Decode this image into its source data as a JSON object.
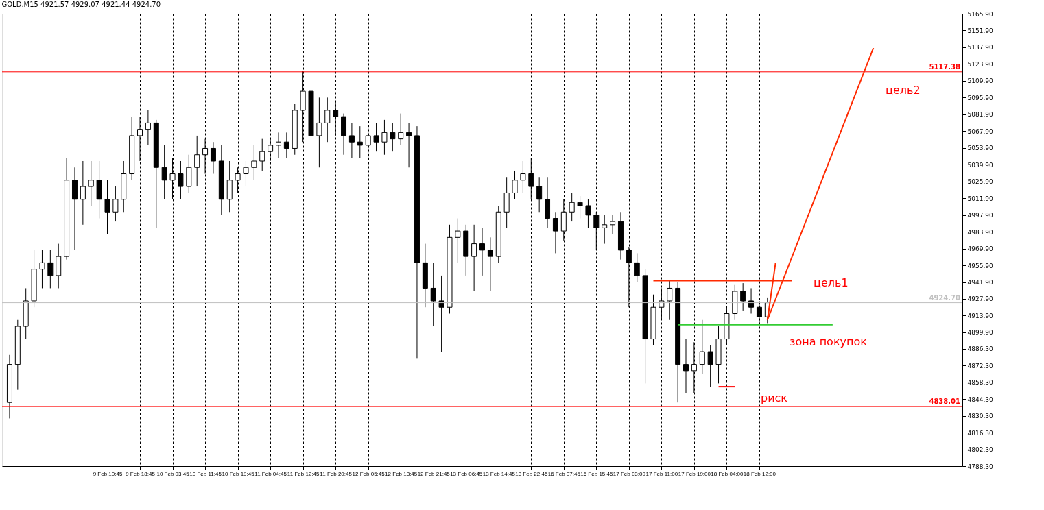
{
  "chart_data": {
    "type": "candlestick",
    "title": "GOLD.M15  4921.57 4929.07 4921.44 4924.70",
    "color": "#000000",
    "categories": [
      null,
      null,
      null,
      null,
      null,
      null,
      null,
      null,
      null,
      null,
      null,
      null,
      "9 Feb 10:45",
      null,
      null,
      null,
      "9 Feb 18:45",
      null,
      null,
      null,
      "10 Feb 03:45",
      null,
      null,
      null,
      "10 Feb 11:45",
      null,
      null,
      null,
      "10 Feb 19:45",
      null,
      null,
      null,
      "11 Feb 04:45",
      null,
      null,
      null,
      "11 Feb 12:45",
      null,
      null,
      null,
      "11 Feb 20:45",
      null,
      null,
      null,
      "12 Feb 05:45",
      null,
      null,
      null,
      "12 Feb 13:45",
      null,
      null,
      null,
      "12 Feb 21:45",
      null,
      null,
      null,
      "13 Feb 06:45",
      null,
      null,
      null,
      "13 Feb 14:45",
      null,
      null,
      null,
      "13 Feb 22:45",
      null,
      null,
      null,
      "16 Feb 07:45",
      null,
      null,
      null,
      "16 Feb 15:45",
      null,
      null,
      null,
      "17 Feb 03:00",
      null,
      null,
      null,
      "17 Feb 11:00",
      null,
      null,
      null,
      "17 Feb 19:00",
      null,
      null,
      null,
      "18 Feb 04:00",
      null,
      null,
      null,
      "18 Feb 12:00",
      null,
      null,
      null,
      null,
      null,
      null,
      null,
      null,
      null,
      null,
      null,
      null,
      null,
      null,
      null,
      null,
      null,
      null,
      null,
      null,
      null,
      null,
      null,
      null
    ],
    "ohlc": [
      [
        4841.4,
        4881.1,
        4828.1,
        4873.2
      ],
      [
        4873.2,
        4910.3,
        4852.0,
        4905.0
      ],
      [
        4905.0,
        4936.8,
        4894.4,
        4926.2
      ],
      [
        4926.2,
        4968.6,
        4920.9,
        4952.7
      ],
      [
        4952.7,
        4968.6,
        4936.8,
        4958.0
      ],
      [
        4958.0,
        4968.6,
        4936.8,
        4947.4
      ],
      [
        4947.4,
        4973.9,
        4936.8,
        4963.3
      ],
      [
        4963.3,
        5045.5,
        4960.7,
        5027.0
      ],
      [
        5027.0,
        5037.6,
        4968.6,
        5011.0
      ],
      [
        5011.0,
        5042.9,
        4989.8,
        5021.7
      ],
      [
        5021.7,
        5042.9,
        5005.7,
        5027.0
      ],
      [
        5027.0,
        5042.9,
        4995.1,
        5011.0
      ],
      [
        5011.0,
        5027.0,
        4981.9,
        5000.4
      ],
      [
        5000.4,
        5021.7,
        4992.5,
        5011.0
      ],
      [
        5011.0,
        5042.9,
        5000.4,
        5032.3
      ],
      [
        5032.3,
        5080.0,
        5027.0,
        5064.1
      ],
      [
        5064.1,
        5080.0,
        5042.9,
        5069.4
      ],
      [
        5069.4,
        5085.3,
        5056.1,
        5074.7
      ],
      [
        5074.7,
        5077.3,
        4987.2,
        5037.6
      ],
      [
        5037.6,
        5056.1,
        5011.0,
        5027.0
      ],
      [
        5027.0,
        5045.5,
        5011.0,
        5032.3
      ],
      [
        5032.3,
        5042.9,
        5011.0,
        5021.7
      ],
      [
        5021.7,
        5048.2,
        5016.3,
        5037.6
      ],
      [
        5037.6,
        5064.1,
        5021.7,
        5048.2
      ],
      [
        5048.2,
        5061.4,
        5032.3,
        5053.5
      ],
      [
        5053.5,
        5058.8,
        5032.3,
        5042.9
      ],
      [
        5042.9,
        5056.1,
        4997.8,
        5011.0
      ],
      [
        5011.0,
        5042.9,
        5000.4,
        5027.0
      ],
      [
        5027.0,
        5037.6,
        5016.3,
        5032.3
      ],
      [
        5032.3,
        5042.9,
        5021.7,
        5037.6
      ],
      [
        5037.6,
        5056.1,
        5027.0,
        5042.9
      ],
      [
        5042.9,
        5061.4,
        5034.9,
        5050.8
      ],
      [
        5050.8,
        5061.4,
        5042.9,
        5056.1
      ],
      [
        5056.1,
        5066.7,
        5045.5,
        5058.8
      ],
      [
        5058.8,
        5066.7,
        5045.5,
        5053.5
      ],
      [
        5053.5,
        5090.6,
        5048.2,
        5085.3
      ],
      [
        5085.3,
        5118.1,
        5058.8,
        5101.2
      ],
      [
        5101.2,
        5106.5,
        5019.0,
        5064.1
      ],
      [
        5064.1,
        5095.9,
        5037.6,
        5074.7
      ],
      [
        5074.7,
        5095.9,
        5058.8,
        5085.3
      ],
      [
        5085.3,
        5093.2,
        5064.1,
        5080.0
      ],
      [
        5080.0,
        5082.6,
        5048.2,
        5064.1
      ],
      [
        5064.1,
        5074.7,
        5045.5,
        5058.8
      ],
      [
        5058.8,
        5072.0,
        5045.5,
        5056.1
      ],
      [
        5056.1,
        5072.0,
        5045.5,
        5064.1
      ],
      [
        5064.1,
        5074.7,
        5050.8,
        5058.8
      ],
      [
        5058.8,
        5077.3,
        5048.2,
        5066.7
      ],
      [
        5066.7,
        5074.7,
        5050.8,
        5061.4
      ],
      [
        5061.4,
        5082.6,
        5056.1,
        5066.7
      ],
      [
        5066.7,
        5074.7,
        5037.6,
        5064.1
      ],
      [
        5064.1,
        5072.0,
        4878.5,
        4958.0
      ],
      [
        4958.0,
        4973.9,
        4920.9,
        4936.8
      ],
      [
        4936.8,
        4958.0,
        4905.0,
        4926.2
      ],
      [
        4926.2,
        4947.4,
        4883.8,
        4920.9
      ],
      [
        4920.9,
        4989.8,
        4915.6,
        4979.2
      ],
      [
        4979.2,
        4995.1,
        4958.0,
        4984.5
      ],
      [
        4984.5,
        4989.8,
        4947.4,
        4963.3
      ],
      [
        4963.3,
        4989.8,
        4934.2,
        4973.9
      ],
      [
        4973.9,
        4987.2,
        4947.4,
        4968.6
      ],
      [
        4968.6,
        4979.2,
        4934.2,
        4963.3
      ],
      [
        4963.3,
        5005.7,
        4958.0,
        5000.4
      ],
      [
        5000.4,
        5029.6,
        4987.2,
        5016.3
      ],
      [
        5016.3,
        5034.9,
        5011.0,
        5027.0
      ],
      [
        5027.0,
        5042.9,
        5016.3,
        5032.3
      ],
      [
        5032.3,
        5045.5,
        5011.0,
        5021.7
      ],
      [
        5021.7,
        5029.6,
        5000.4,
        5011.0
      ],
      [
        5011.0,
        5029.6,
        4987.2,
        4995.1
      ],
      [
        4995.1,
        5000.4,
        4966.0,
        4984.5
      ],
      [
        4984.5,
        5011.0,
        4976.6,
        5000.4
      ],
      [
        5000.4,
        5016.3,
        4992.5,
        5008.4
      ],
      [
        5008.4,
        5013.7,
        4995.1,
        5005.7
      ],
      [
        5005.7,
        5011.0,
        4987.2,
        4997.8
      ],
      [
        4997.8,
        5000.4,
        4968.6,
        4987.2
      ],
      [
        4987.2,
        4997.8,
        4973.9,
        4989.8
      ],
      [
        4989.8,
        4997.8,
        4981.9,
        4992.5
      ],
      [
        4992.5,
        5000.4,
        4960.7,
        4968.6
      ],
      [
        4968.6,
        4971.3,
        4920.9,
        4958.0
      ],
      [
        4958.0,
        4966.0,
        4942.1,
        4947.4
      ],
      [
        4947.4,
        4952.7,
        4857.3,
        4894.4
      ],
      [
        4894.4,
        4931.5,
        4889.1,
        4920.9
      ],
      [
        4920.9,
        4936.8,
        4910.3,
        4926.2
      ],
      [
        4926.2,
        4943.1,
        4910.3,
        4936.8
      ],
      [
        4936.8,
        4942.1,
        4841.4,
        4873.2
      ],
      [
        4873.2,
        4894.4,
        4849.3,
        4867.9
      ],
      [
        4867.9,
        4891.7,
        4849.3,
        4873.2
      ],
      [
        4873.2,
        4910.3,
        4865.2,
        4883.8
      ],
      [
        4883.8,
        4889.1,
        4854.6,
        4873.2
      ],
      [
        4873.2,
        4905.0,
        4857.3,
        4894.4
      ],
      [
        4894.4,
        4920.9,
        4889.1,
        4915.6
      ],
      [
        4915.6,
        4939.5,
        4910.3,
        4934.2
      ],
      [
        4934.2,
        4941.0,
        4918.2,
        4926.2
      ],
      [
        4926.2,
        4936.8,
        4915.6,
        4920.9
      ],
      [
        4920.9,
        4926.2,
        4907.6,
        4912.9
      ],
      [
        4912.9,
        4929.1,
        4907.6,
        4924.7
      ],
      null,
      null,
      null,
      null,
      null,
      null,
      null,
      null,
      null,
      null,
      null,
      null,
      null,
      null,
      null,
      null,
      null,
      null,
      null,
      null,
      null,
      null,
      null
    ],
    "series": [
      {
        "type": "line",
        "color": "#ff2a00",
        "values": [
          null,
          null,
          null,
          null,
          null,
          null,
          null,
          null,
          null,
          null,
          null,
          null,
          null,
          null,
          null,
          null,
          null,
          null,
          null,
          null,
          null,
          null,
          null,
          null,
          null,
          null,
          null,
          null,
          null,
          null,
          null,
          null,
          null,
          null,
          null,
          null,
          null,
          null,
          null,
          null,
          null,
          null,
          null,
          null,
          null,
          null,
          null,
          null,
          null,
          null,
          null,
          null,
          null,
          null,
          null,
          null,
          null,
          null,
          null,
          null,
          null,
          null,
          null,
          null,
          null,
          null,
          null,
          null,
          null,
          null,
          null,
          null,
          null,
          null,
          null,
          null,
          null,
          null,
          null,
          null,
          null,
          null,
          null,
          null,
          null,
          null,
          null,
          null,
          null,
          null,
          null,
          null,
          null,
          4910.3,
          null,
          null,
          null,
          null,
          null,
          null,
          null,
          null,
          null,
          null,
          null,
          null,
          5137.3,
          null,
          null,
          null,
          null,
          null,
          null,
          null,
          null,
          null,
          null
        ]
      },
      {
        "type": "line",
        "color": "#ff2a00",
        "values": [
          null,
          null,
          null,
          null,
          null,
          null,
          null,
          null,
          null,
          null,
          null,
          null,
          null,
          null,
          null,
          null,
          null,
          null,
          null,
          null,
          null,
          null,
          null,
          null,
          null,
          null,
          null,
          null,
          null,
          null,
          null,
          null,
          null,
          null,
          null,
          null,
          null,
          null,
          null,
          null,
          null,
          null,
          null,
          null,
          null,
          null,
          null,
          null,
          null,
          null,
          null,
          null,
          null,
          null,
          null,
          null,
          null,
          null,
          null,
          null,
          null,
          null,
          null,
          null,
          null,
          null,
          null,
          null,
          null,
          null,
          null,
          null,
          null,
          null,
          null,
          null,
          null,
          null,
          null,
          null,
          null,
          null,
          null,
          null,
          null,
          null,
          null,
          null,
          null,
          null,
          null,
          null,
          null,
          4910.3,
          4958.0,
          null,
          null,
          null,
          null,
          null,
          null,
          null,
          null,
          null,
          null,
          null,
          null,
          null,
          null,
          null,
          null,
          null,
          null,
          null,
          null,
          null,
          null
        ]
      },
      {
        "type": "line",
        "color": "#ff0000",
        "values": [
          null,
          null,
          null,
          null,
          null,
          null,
          null,
          null,
          null,
          null,
          null,
          null,
          null,
          null,
          null,
          null,
          null,
          null,
          null,
          null,
          null,
          null,
          null,
          null,
          null,
          null,
          null,
          null,
          null,
          null,
          null,
          null,
          null,
          null,
          null,
          null,
          null,
          null,
          null,
          null,
          null,
          null,
          null,
          null,
          null,
          null,
          null,
          null,
          null,
          null,
          null,
          null,
          null,
          null,
          null,
          null,
          null,
          null,
          null,
          null,
          null,
          null,
          null,
          null,
          null,
          null,
          null,
          null,
          null,
          null,
          null,
          null,
          null,
          null,
          null,
          null,
          null,
          null,
          null,
          null,
          null,
          null,
          null,
          null,
          null,
          null,
          null,
          4854.6,
          4854.6,
          4854.6,
          null,
          null,
          null,
          null,
          null,
          null,
          null,
          null,
          null,
          null,
          null,
          null,
          null,
          null,
          null,
          null,
          null,
          null,
          null,
          null,
          null,
          null,
          null,
          null,
          null,
          null,
          null
        ]
      },
      {
        "type": "line",
        "color": "#ff2a00",
        "values": [
          null,
          null,
          null,
          null,
          null,
          null,
          null,
          null,
          null,
          null,
          null,
          null,
          null,
          null,
          null,
          null,
          null,
          null,
          null,
          null,
          null,
          null,
          null,
          null,
          null,
          null,
          null,
          null,
          null,
          null,
          null,
          null,
          null,
          null,
          null,
          null,
          null,
          null,
          null,
          null,
          null,
          null,
          null,
          null,
          null,
          null,
          null,
          null,
          null,
          null,
          null,
          null,
          null,
          null,
          null,
          null,
          null,
          null,
          null,
          null,
          null,
          null,
          null,
          null,
          null,
          null,
          null,
          null,
          null,
          null,
          null,
          null,
          null,
          null,
          null,
          null,
          null,
          null,
          null,
          4943.1,
          4943.1,
          4943.1,
          4943.1,
          4943.1,
          4943.1,
          4943.1,
          4943.1,
          4943.1,
          4943.1,
          4943.1,
          4943.1,
          4943.1,
          4943.1,
          4943.1,
          4943.1,
          4943.1,
          4943.1,
          null,
          null,
          null,
          null,
          null,
          null,
          null,
          null,
          null,
          null,
          null,
          null,
          null,
          null,
          null,
          null,
          null,
          null,
          null,
          null
        ]
      },
      {
        "type": "line",
        "color": "#33cc33",
        "values": [
          null,
          null,
          null,
          null,
          null,
          null,
          null,
          null,
          null,
          null,
          null,
          null,
          null,
          null,
          null,
          null,
          null,
          null,
          null,
          null,
          null,
          null,
          null,
          null,
          null,
          null,
          null,
          null,
          null,
          null,
          null,
          null,
          null,
          null,
          null,
          null,
          null,
          null,
          null,
          null,
          null,
          null,
          null,
          null,
          null,
          null,
          null,
          null,
          null,
          null,
          null,
          null,
          null,
          null,
          null,
          null,
          null,
          null,
          null,
          null,
          null,
          null,
          null,
          null,
          null,
          null,
          null,
          null,
          null,
          null,
          null,
          null,
          null,
          null,
          null,
          null,
          null,
          null,
          null,
          null,
          null,
          null,
          4906.3,
          4906.3,
          4906.3,
          4906.3,
          4906.3,
          4906.3,
          4906.3,
          4906.3,
          4906.3,
          4906.3,
          4906.3,
          4906.3,
          4906.3,
          4906.3,
          4906.3,
          4906.3,
          4906.3,
          4906.3,
          4906.3,
          4906.3,
          null,
          null,
          null,
          null,
          null,
          null,
          null,
          null,
          null,
          null,
          null,
          null,
          null,
          null,
          null
        ]
      }
    ],
    "ref_lines": [
      {
        "axis": "y",
        "value": 5117.38,
        "label": "5117.38",
        "color": "#ff0000"
      },
      {
        "axis": "y",
        "value": 4838.01,
        "label": "4838.01",
        "color": "#ff0000"
      },
      {
        "axis": "y",
        "value": 4924.7,
        "label": "4924.70",
        "color": "#c0c0c0"
      }
    ],
    "annotations": [
      "цель2",
      "цель1",
      "зона покупок",
      "риск"
    ],
    "ylim": [
      4788.3,
      5165.9
    ],
    "yticks": [
      {
        "value": 5165.9,
        "label": "5165.90"
      },
      {
        "value": 5151.9,
        "label": "5151.90"
      },
      {
        "value": 5137.9,
        "label": "5137.90"
      },
      {
        "value": 5123.9,
        "label": "5123.90"
      },
      {
        "value": 5109.9,
        "label": "5109.90"
      },
      {
        "value": 5095.9,
        "label": "5095.90"
      },
      {
        "value": 5081.9,
        "label": "5081.90"
      },
      {
        "value": 5067.9,
        "label": "5067.90"
      },
      {
        "value": 5053.9,
        "label": "5053.90"
      },
      {
        "value": 5039.9,
        "label": "5039.90"
      },
      {
        "value": 5025.9,
        "label": "5025.90"
      },
      {
        "value": 5011.9,
        "label": "5011.90"
      },
      {
        "value": 4997.9,
        "label": "4997.90"
      },
      {
        "value": 4983.9,
        "label": "4983.90"
      },
      {
        "value": 4969.9,
        "label": "4969.90"
      },
      {
        "value": 4955.9,
        "label": "4955.90"
      },
      {
        "value": 4941.9,
        "label": "4941.90"
      },
      {
        "value": 4927.9,
        "label": "4927.90"
      },
      {
        "value": 4913.9,
        "label": "4913.90"
      },
      {
        "value": 4899.9,
        "label": "4899.90"
      },
      {
        "value": 4886.3,
        "label": "4886.30"
      },
      {
        "value": 4872.3,
        "label": "4872.30"
      },
      {
        "value": 4858.3,
        "label": "4858.30"
      },
      {
        "value": 4844.3,
        "label": "4844.30"
      },
      {
        "value": 4830.3,
        "label": "4830.30"
      },
      {
        "value": 4816.3,
        "label": "4816.30"
      },
      {
        "value": 4802.3,
        "label": "4802.30"
      },
      {
        "value": 4788.3,
        "label": "4788.30"
      }
    ],
    "grid": "x"
  }
}
